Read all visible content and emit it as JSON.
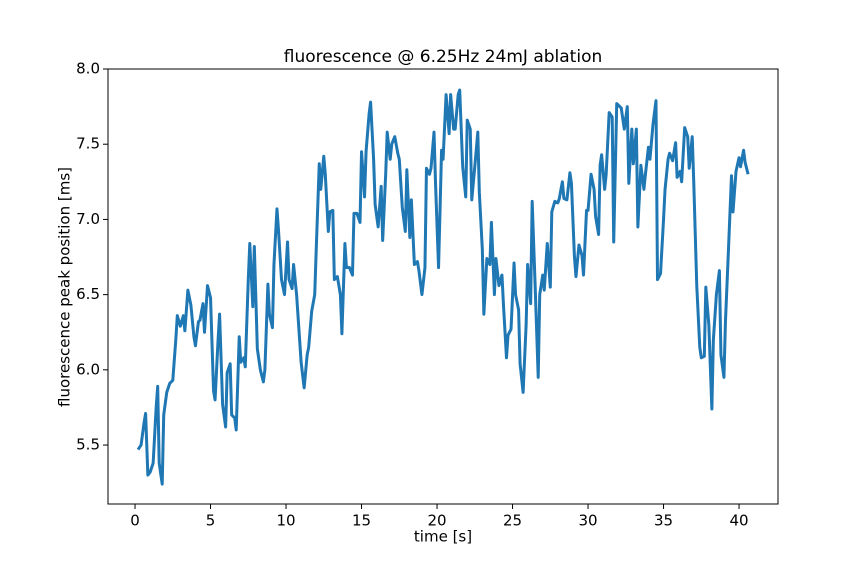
{
  "chart_data": {
    "type": "line",
    "title": "fluorescence @ 6.25Hz 24mJ ablation",
    "xlabel": "time [s]",
    "ylabel": "fluorescence peak position [ms]",
    "xlim": [
      -1.79,
      42.58
    ],
    "ylim": [
      5.108,
      8.0
    ],
    "xticks": [
      0,
      5,
      10,
      15,
      20,
      25,
      30,
      35,
      40
    ],
    "yticks": [
      5.5,
      {
        "value": 6,
        "label": "6.0"
      },
      6.5,
      {
        "value": 7,
        "label": "7.0"
      },
      7.5,
      {
        "value": 8,
        "label": "8.0"
      }
    ],
    "series": [
      {
        "color": "#1f77b4",
        "x": [
          0.2,
          0.4,
          0.6,
          0.7,
          0.85,
          1.0,
          1.2,
          1.4,
          1.5,
          1.6,
          1.8,
          1.9,
          2.1,
          2.3,
          2.5,
          2.7,
          2.8,
          3.0,
          3.2,
          3.3,
          3.5,
          3.7,
          3.9,
          4.0,
          4.2,
          4.3,
          4.5,
          4.6,
          4.8,
          5.0,
          5.2,
          5.3,
          5.5,
          5.6,
          5.8,
          6.0,
          6.1,
          6.3,
          6.4,
          6.6,
          6.7,
          6.9,
          7.0,
          7.2,
          7.3,
          7.5,
          7.6,
          7.8,
          7.9,
          8.1,
          8.3,
          8.5,
          8.6,
          8.8,
          8.9,
          9.1,
          9.2,
          9.4,
          9.5,
          9.7,
          9.9,
          10.1,
          10.2,
          10.4,
          10.5,
          10.7,
          10.9,
          11.0,
          11.2,
          11.4,
          11.5,
          11.7,
          11.9,
          12.0,
          12.2,
          12.3,
          12.5,
          12.6,
          12.8,
          12.9,
          13.1,
          13.2,
          13.4,
          13.6,
          13.7,
          13.9,
          14.0,
          14.2,
          14.4,
          14.5,
          14.7,
          14.9,
          15.0,
          15.2,
          15.3,
          15.5,
          15.6,
          15.8,
          15.9,
          16.1,
          16.3,
          16.4,
          16.6,
          16.7,
          16.9,
          17.0,
          17.2,
          17.4,
          17.5,
          17.7,
          17.9,
          18.0,
          18.2,
          18.3,
          18.5,
          18.7,
          18.8,
          19.0,
          19.2,
          19.3,
          19.5,
          19.6,
          19.8,
          19.9,
          20.1,
          20.3,
          20.4,
          20.6,
          20.8,
          20.9,
          21.1,
          21.2,
          21.4,
          21.5,
          21.7,
          21.9,
          22.0,
          22.2,
          22.3,
          22.5,
          22.7,
          22.8,
          23.0,
          23.1,
          23.3,
          23.5,
          23.6,
          23.8,
          23.9,
          24.1,
          24.3,
          24.4,
          24.6,
          24.7,
          24.9,
          25.1,
          25.2,
          25.4,
          25.5,
          25.7,
          25.9,
          26.0,
          26.2,
          26.3,
          26.5,
          26.7,
          26.8,
          27.0,
          27.1,
          27.3,
          27.5,
          27.6,
          27.8,
          28.0,
          28.1,
          28.3,
          28.4,
          28.6,
          28.8,
          28.9,
          29.1,
          29.2,
          29.4,
          29.6,
          29.7,
          29.9,
          30.0,
          30.2,
          30.4,
          30.5,
          30.7,
          30.8,
          30.9,
          31.1,
          31.2,
          31.4,
          31.6,
          31.7,
          31.9,
          32.0,
          32.2,
          32.4,
          32.6,
          32.7,
          32.9,
          33.0,
          33.2,
          33.3,
          33.5,
          33.7,
          33.8,
          34.0,
          34.1,
          34.3,
          34.5,
          34.6,
          34.8,
          35.0,
          35.1,
          35.3,
          35.4,
          35.6,
          35.8,
          35.9,
          36.1,
          36.2,
          36.4,
          36.6,
          36.7,
          36.9,
          37.0,
          37.2,
          37.4,
          37.5,
          37.7,
          37.8,
          38.0,
          38.2,
          38.3,
          38.5,
          38.7,
          38.8,
          39.0,
          39.1,
          39.3,
          39.5,
          39.6,
          39.8,
          40.0,
          40.1,
          40.3,
          40.4,
          40.6
        ],
        "values": [
          5.47,
          5.5,
          5.65,
          5.71,
          5.3,
          5.32,
          5.38,
          5.75,
          5.89,
          5.38,
          5.24,
          5.7,
          5.85,
          5.91,
          5.93,
          6.2,
          6.36,
          6.29,
          6.36,
          6.26,
          6.53,
          6.43,
          6.22,
          6.16,
          6.32,
          6.33,
          6.44,
          6.25,
          6.56,
          6.48,
          5.86,
          5.8,
          6.2,
          6.37,
          5.77,
          5.62,
          5.98,
          6.04,
          5.7,
          5.68,
          5.6,
          6.22,
          6.05,
          6.08,
          6.02,
          6.6,
          6.84,
          6.42,
          6.82,
          6.14,
          6.0,
          5.92,
          6.0,
          6.57,
          6.37,
          6.28,
          6.7,
          7.07,
          6.93,
          6.6,
          6.5,
          6.85,
          6.6,
          6.54,
          6.7,
          6.5,
          6.2,
          6.05,
          5.88,
          6.1,
          6.15,
          6.39,
          6.5,
          6.8,
          7.37,
          7.2,
          7.42,
          7.3,
          6.92,
          7.05,
          7.06,
          6.6,
          6.62,
          6.5,
          6.24,
          6.84,
          6.68,
          6.68,
          6.63,
          7.04,
          7.04,
          6.98,
          7.45,
          7.15,
          7.45,
          7.7,
          7.78,
          7.4,
          7.1,
          6.95,
          7.22,
          6.86,
          7.3,
          7.58,
          7.4,
          7.5,
          7.55,
          7.44,
          7.4,
          7.08,
          6.92,
          7.33,
          6.88,
          7.13,
          6.7,
          6.72,
          6.66,
          6.5,
          6.68,
          7.34,
          7.3,
          7.34,
          7.58,
          7.24,
          6.68,
          7.46,
          7.4,
          7.83,
          7.57,
          7.83,
          7.6,
          7.6,
          7.83,
          7.86,
          7.35,
          7.15,
          7.66,
          7.6,
          7.13,
          7.35,
          7.58,
          7.18,
          6.8,
          6.37,
          6.74,
          6.7,
          6.98,
          6.5,
          6.74,
          6.56,
          6.63,
          6.43,
          6.08,
          6.23,
          6.27,
          6.71,
          6.5,
          6.4,
          6.04,
          5.85,
          6.3,
          6.7,
          6.44,
          7.12,
          6.55,
          5.95,
          6.5,
          6.63,
          6.53,
          6.84,
          6.55,
          7.05,
          7.12,
          7.11,
          7.14,
          7.25,
          7.14,
          7.13,
          7.31,
          7.24,
          6.75,
          6.62,
          6.83,
          6.76,
          6.63,
          7.06,
          7.06,
          7.3,
          7.2,
          7.02,
          6.9,
          7.36,
          7.43,
          7.2,
          7.3,
          7.71,
          7.68,
          6.85,
          7.77,
          7.76,
          7.74,
          7.6,
          7.75,
          7.24,
          7.6,
          7.37,
          7.6,
          6.95,
          7.36,
          7.2,
          7.3,
          7.48,
          7.4,
          7.63,
          7.79,
          6.6,
          6.64,
          7.0,
          7.2,
          7.4,
          7.44,
          7.39,
          7.51,
          7.28,
          7.32,
          7.25,
          7.61,
          7.55,
          7.34,
          7.55,
          7.25,
          6.56,
          6.15,
          6.08,
          6.09,
          6.55,
          6.3,
          5.74,
          6.2,
          6.5,
          6.66,
          6.1,
          5.95,
          6.32,
          6.8,
          7.29,
          7.05,
          7.32,
          7.41,
          7.35,
          7.46,
          7.38,
          7.3
        ]
      }
    ]
  }
}
